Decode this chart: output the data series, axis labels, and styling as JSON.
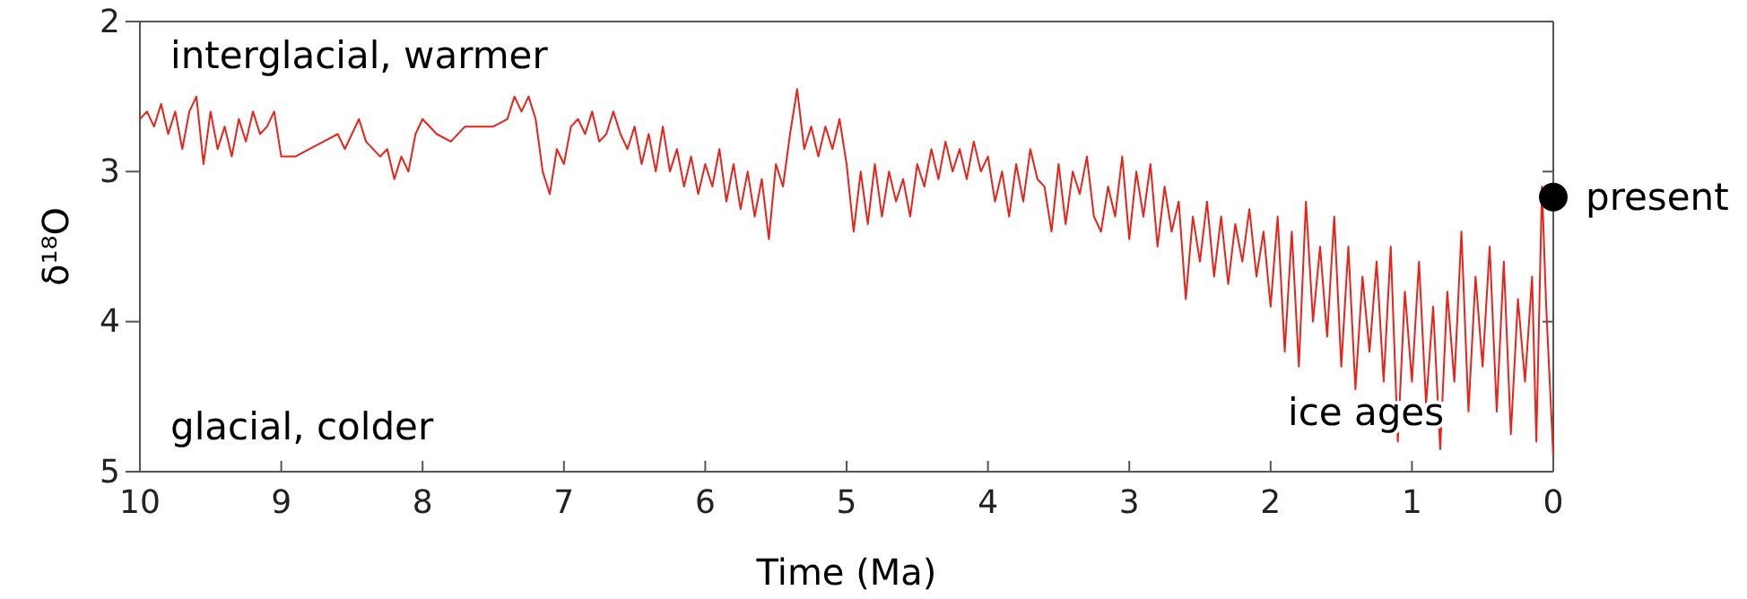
{
  "chart_data": {
    "type": "line",
    "xlabel": "Time (Ma)",
    "ylabel": "δ¹⁸O",
    "xlim": [
      10,
      0
    ],
    "xticks": [
      10,
      9,
      8,
      7,
      6,
      5,
      4,
      3,
      2,
      1,
      0
    ],
    "ylim": [
      5,
      2
    ],
    "yticks": [
      2,
      3,
      4,
      5
    ],
    "grid": false,
    "annotations": [
      "interglacial, warmer",
      "glacial, colder",
      "ice ages",
      {
        "text": "present",
        "x": 0,
        "y": 3.17
      }
    ],
    "series": [
      {
        "color": "#e8231a",
        "x": [
          10,
          9.95,
          9.9,
          9.85,
          9.8,
          9.75,
          9.7,
          9.65,
          9.6,
          9.55,
          9.5,
          9.45,
          9.4,
          9.35,
          9.3,
          9.25,
          9.2,
          9.15,
          9.1,
          9.05,
          9.0,
          8.9,
          8.8,
          8.7,
          8.6,
          8.55,
          8.45,
          8.4,
          8.3,
          8.25,
          8.2,
          8.15,
          8.1,
          8.05,
          8.0,
          7.9,
          7.8,
          7.7,
          7.6,
          7.5,
          7.4,
          7.35,
          7.3,
          7.25,
          7.2,
          7.15,
          7.1,
          7.05,
          7.0,
          6.95,
          6.9,
          6.85,
          6.8,
          6.75,
          6.7,
          6.65,
          6.6,
          6.55,
          6.5,
          6.45,
          6.4,
          6.35,
          6.3,
          6.25,
          6.2,
          6.15,
          6.1,
          6.05,
          6.0,
          5.95,
          5.9,
          5.85,
          5.8,
          5.75,
          5.7,
          5.65,
          5.6,
          5.55,
          5.5,
          5.45,
          5.4,
          5.35,
          5.3,
          5.25,
          5.2,
          5.15,
          5.1,
          5.05,
          5.0,
          4.95,
          4.9,
          4.85,
          4.8,
          4.75,
          4.7,
          4.65,
          4.6,
          4.55,
          4.5,
          4.45,
          4.4,
          4.35,
          4.3,
          4.25,
          4.2,
          4.15,
          4.1,
          4.05,
          4.0,
          3.95,
          3.9,
          3.85,
          3.8,
          3.75,
          3.7,
          3.65,
          3.6,
          3.55,
          3.5,
          3.45,
          3.4,
          3.35,
          3.3,
          3.25,
          3.2,
          3.15,
          3.1,
          3.05,
          3.0,
          2.95,
          2.9,
          2.85,
          2.8,
          2.75,
          2.7,
          2.65,
          2.6,
          2.55,
          2.5,
          2.45,
          2.4,
          2.35,
          2.3,
          2.25,
          2.2,
          2.15,
          2.1,
          2.05,
          2.0,
          1.95,
          1.9,
          1.85,
          1.8,
          1.75,
          1.7,
          1.65,
          1.6,
          1.55,
          1.5,
          1.45,
          1.4,
          1.35,
          1.3,
          1.25,
          1.2,
          1.15,
          1.1,
          1.05,
          1.0,
          0.95,
          0.9,
          0.85,
          0.8,
          0.75,
          0.7,
          0.65,
          0.6,
          0.55,
          0.5,
          0.45,
          0.4,
          0.35,
          0.3,
          0.25,
          0.2,
          0.15,
          0.12,
          0.08,
          0.05,
          0.03,
          0.0
        ],
        "values": [
          2.65,
          2.6,
          2.7,
          2.55,
          2.75,
          2.6,
          2.85,
          2.6,
          2.5,
          2.95,
          2.6,
          2.85,
          2.7,
          2.9,
          2.65,
          2.8,
          2.6,
          2.75,
          2.7,
          2.6,
          2.9,
          2.9,
          2.85,
          2.8,
          2.75,
          2.85,
          2.65,
          2.8,
          2.9,
          2.85,
          3.05,
          2.9,
          3.0,
          2.75,
          2.65,
          2.75,
          2.8,
          2.7,
          2.7,
          2.7,
          2.65,
          2.5,
          2.6,
          2.5,
          2.65,
          3.0,
          3.15,
          2.85,
          2.95,
          2.7,
          2.65,
          2.75,
          2.6,
          2.8,
          2.75,
          2.6,
          2.75,
          2.85,
          2.7,
          2.95,
          2.75,
          3.0,
          2.7,
          3.0,
          2.85,
          3.1,
          2.9,
          3.15,
          2.95,
          3.1,
          2.85,
          3.2,
          2.95,
          3.25,
          3.0,
          3.3,
          3.05,
          3.45,
          2.95,
          3.1,
          2.75,
          2.45,
          2.85,
          2.7,
          2.9,
          2.7,
          2.85,
          2.65,
          2.95,
          3.4,
          3.0,
          3.35,
          2.95,
          3.3,
          3.0,
          3.2,
          3.05,
          3.3,
          2.95,
          3.1,
          2.85,
          3.05,
          2.8,
          3.0,
          2.85,
          3.05,
          2.8,
          3.0,
          2.9,
          3.2,
          3.0,
          3.3,
          2.95,
          3.2,
          2.85,
          3.05,
          3.1,
          3.4,
          2.95,
          3.35,
          3.0,
          3.15,
          2.9,
          3.3,
          3.4,
          3.1,
          3.3,
          2.9,
          3.45,
          3.0,
          3.3,
          2.95,
          3.5,
          3.1,
          3.4,
          3.2,
          3.85,
          3.3,
          3.6,
          3.2,
          3.7,
          3.3,
          3.75,
          3.35,
          3.6,
          3.25,
          3.7,
          3.4,
          3.9,
          3.3,
          4.2,
          3.4,
          4.3,
          3.2,
          4.0,
          3.5,
          4.1,
          3.3,
          4.3,
          3.5,
          4.45,
          3.7,
          4.2,
          3.6,
          4.4,
          3.5,
          4.8,
          3.8,
          4.4,
          3.6,
          4.55,
          3.9,
          4.85,
          3.8,
          4.4,
          3.4,
          4.6,
          3.7,
          4.3,
          3.5,
          4.6,
          3.6,
          4.75,
          3.85,
          4.4,
          3.7,
          4.8,
          3.1,
          3.9,
          4.3,
          4.9
        ]
      },
      {
        "type": "scatter",
        "color": "#000000",
        "marker": "circle",
        "x": [
          0
        ],
        "values": [
          3.17
        ]
      }
    ]
  }
}
